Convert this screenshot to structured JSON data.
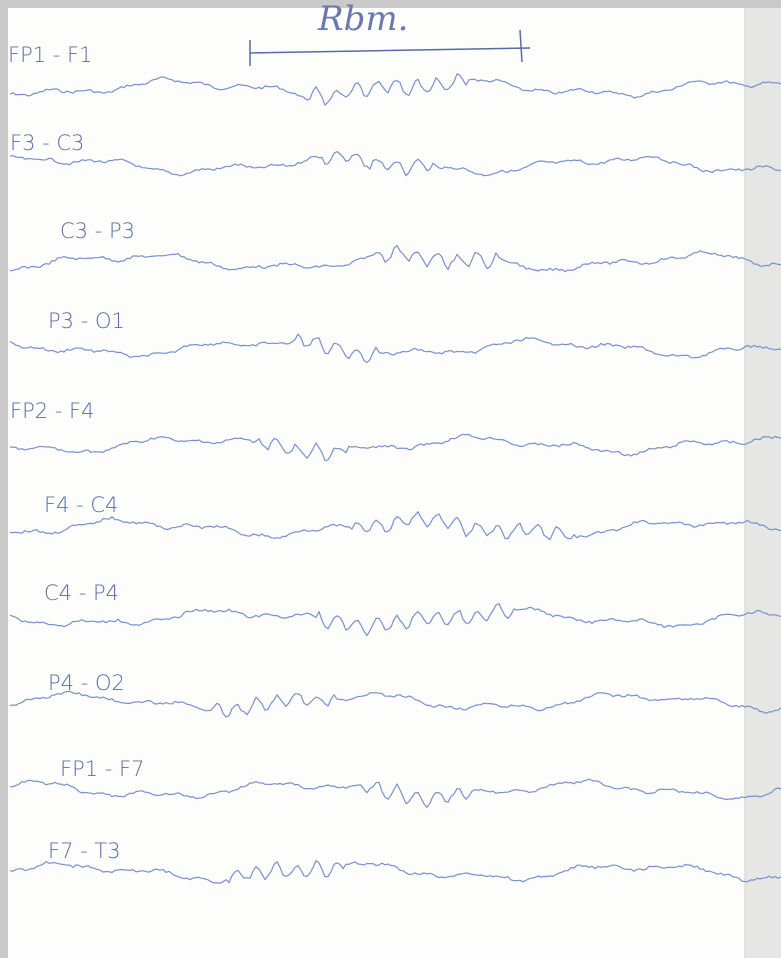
{
  "heading": "Rbm.",
  "channels": [
    "FP1 - F1",
    "F3 - C3",
    "C3 - P3",
    "P3 - O1",
    "FP2 - F4",
    "F4 - C4",
    "C4 - P4",
    "P4 - O2",
    "FP1 - F7",
    "F7 - T3"
  ]
}
